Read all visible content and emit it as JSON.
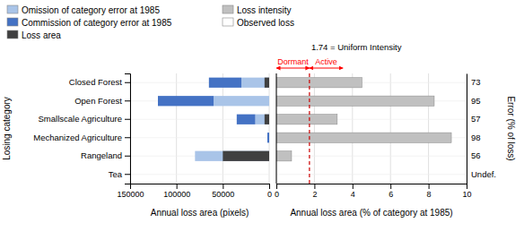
{
  "chart_data": [
    {
      "type": "bar",
      "orientation": "horizontal",
      "stacked": true,
      "grid": true,
      "legend": "upper left",
      "categories": [
        "Tea",
        "Rangeland",
        "Mechanized Agriculture",
        "Smallscale Agriculture",
        "Open Forest",
        "Closed Forest"
      ],
      "xlabel": "Annual loss area (pixels)",
      "ylabel": "Losing category",
      "xlim": [
        150000,
        0
      ],
      "xticks": [
        150000,
        100000,
        50000,
        0
      ],
      "series": [
        {
          "name": "Omission of category error at 1985",
          "color": "#a9c4e8",
          "values": [
            0,
            80000,
            0,
            15000,
            60000,
            30000
          ]
        },
        {
          "name": "Commission of category error at 1985",
          "color": "#4472c4",
          "values": [
            0,
            0,
            2000,
            20000,
            60000,
            35000
          ]
        },
        {
          "name": "Loss area",
          "color": "#404040",
          "type": "overlay",
          "values": [
            0,
            50000,
            0,
            5000,
            0,
            5000
          ]
        }
      ]
    },
    {
      "type": "bar",
      "orientation": "horizontal",
      "grid": true,
      "legend": "upper left",
      "tick_labels": "x",
      "categories": [
        "Tea",
        "Rangeland",
        "Mechanized Agriculture",
        "Smallscale Agriculture",
        "Open Forest",
        "Closed Forest"
      ],
      "xlabel": "Annual loss area (% of category at 1985)",
      "y2label": "Error (% of loss)",
      "y2categories": [
        "Undef.",
        "56",
        "98",
        "57",
        "95",
        "73"
      ],
      "xlim": [
        0,
        10
      ],
      "xticks": [
        0,
        2,
        4,
        6,
        8,
        10
      ],
      "series": [
        {
          "name": "Loss intensity",
          "color": "#c0c0c0",
          "values": [
            0,
            0.8,
            9.2,
            3.2,
            8.3,
            4.5
          ]
        },
        {
          "name": "Observed loss",
          "color": "#ffffff",
          "values": [
            null,
            null,
            null,
            null,
            null,
            null
          ]
        }
      ],
      "reference_line": {
        "value": 1.74,
        "color": "#cc0000",
        "line_style": "dashed"
      },
      "annotations": [
        {
          "text": "1.74 = Uniform Intensity",
          "x": 1.74
        },
        {
          "text": "Dormant",
          "x": [
            0,
            1.74
          ],
          "color": "red"
        },
        {
          "text": "Active",
          "x": [
            1.74,
            3.5
          ],
          "color": "red"
        }
      ]
    }
  ]
}
